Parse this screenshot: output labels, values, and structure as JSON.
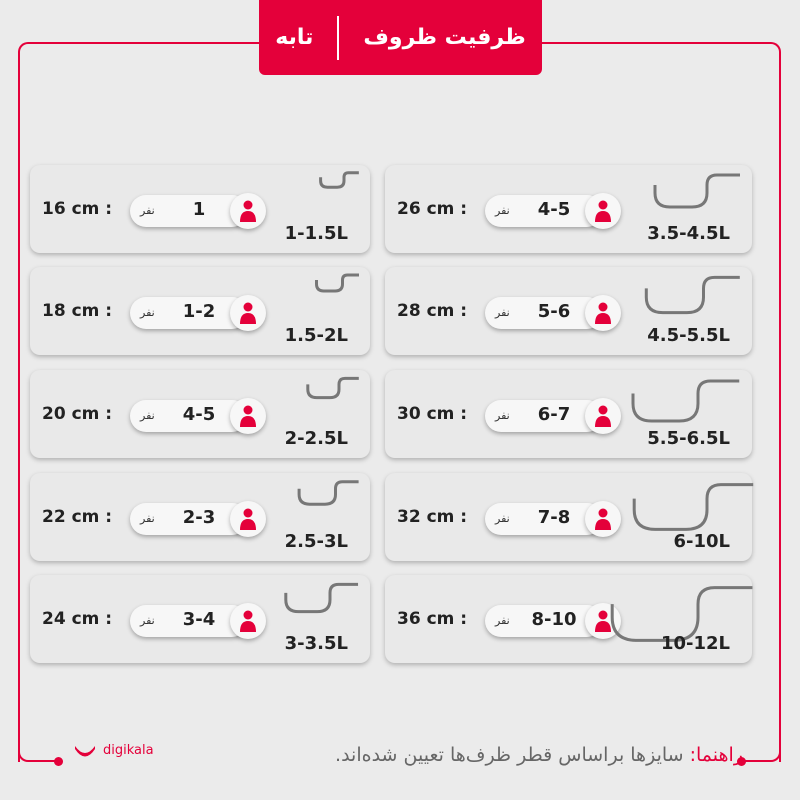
{
  "header": {
    "title": "ظرفیت ظروف",
    "subtitle": "تابه"
  },
  "colors": {
    "accent": "#e4003a",
    "background": "#ebebeb"
  },
  "people_unit": "نفر",
  "left_cards": [
    {
      "size": "16 cm :",
      "people": "1",
      "capacity": "1-1.5L"
    },
    {
      "size": "18 cm :",
      "people": "1-2",
      "capacity": "1.5-2L"
    },
    {
      "size": "20 cm :",
      "people": "4-5",
      "capacity": "2-2.5L"
    },
    {
      "size": "22 cm :",
      "people": "2-3",
      "capacity": "2.5-3L"
    },
    {
      "size": "24 cm :",
      "people": "3-4",
      "capacity": "3-3.5L"
    }
  ],
  "right_cards": [
    {
      "size": "26 cm :",
      "people": "4-5",
      "capacity": "3.5-4.5L"
    },
    {
      "size": "28 cm :",
      "people": "5-6",
      "capacity": "4.5-5.5L"
    },
    {
      "size": "30 cm :",
      "people": "6-7",
      "capacity": "5.5-6.5L"
    },
    {
      "size": "32 cm :",
      "people": "7-8",
      "capacity": "6-10L"
    },
    {
      "size": "36 cm :",
      "people": "8-10",
      "capacity": "10-12L"
    }
  ],
  "footer": {
    "note_label": "راهنما:",
    "note_text": " سایزها براساس قطر ظرف‌ها تعیین شده‌اند.",
    "logo_text": "digikala"
  }
}
